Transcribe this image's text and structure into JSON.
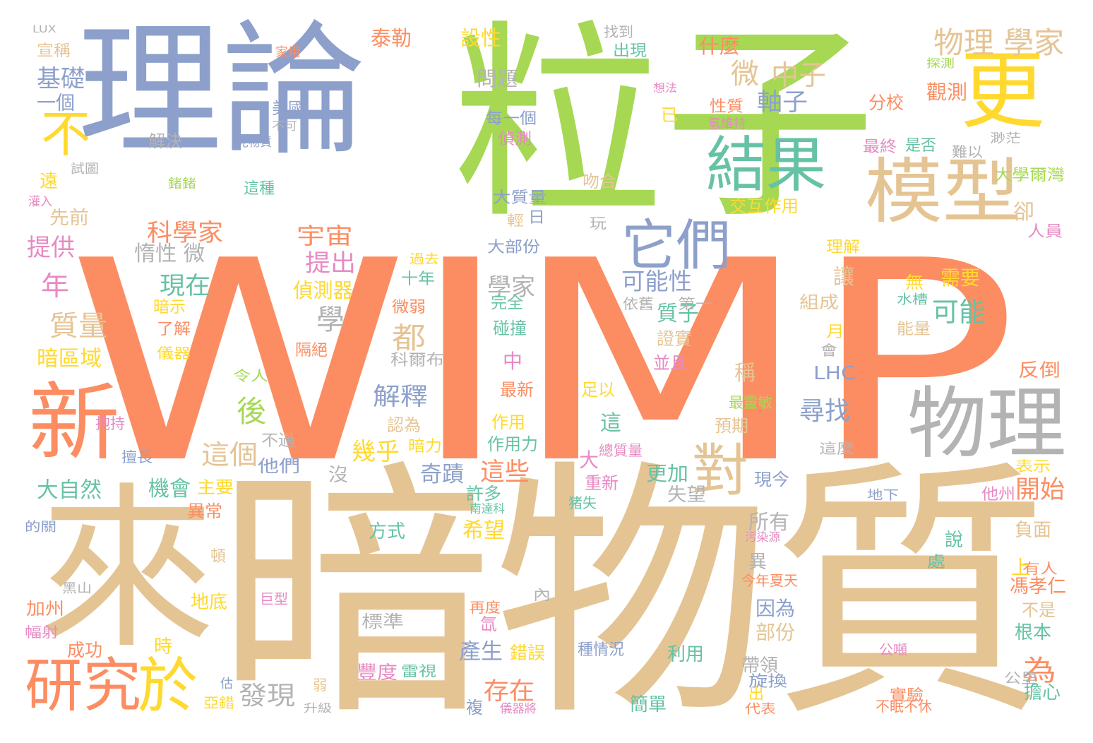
{
  "palette": {
    "orange": "#FC8D62",
    "blue": "#8DA0CB",
    "green": "#A6D854",
    "yellow": "#FFD92F",
    "tan": "#E5C494",
    "gray": "#B3B3B3",
    "teal": "#66C2A5",
    "pink": "#E78AC3"
  },
  "words": [
    {
      "text": "WIMP",
      "color": "orange"
    },
    {
      "text": "理論",
      "color": "blue"
    },
    {
      "text": "粒子",
      "color": "green"
    },
    {
      "text": "更",
      "color": "yellow"
    },
    {
      "text": "暗物質",
      "color": "tan"
    },
    {
      "text": "來",
      "color": "tan"
    },
    {
      "text": "新",
      "color": "orange"
    },
    {
      "text": "物理",
      "color": "gray"
    },
    {
      "text": "模型",
      "color": "tan"
    },
    {
      "text": "結果",
      "color": "teal"
    },
    {
      "text": "它們",
      "color": "blue"
    },
    {
      "text": "研究",
      "color": "orange"
    },
    {
      "text": "於",
      "color": "yellow"
    },
    {
      "text": "不",
      "color": "yellow"
    },
    {
      "text": "對",
      "color": "tan"
    },
    {
      "text": "物理 學家",
      "color": "tan"
    },
    {
      "text": "微",
      "color": "tan"
    },
    {
      "text": "中子",
      "color": "tan"
    },
    {
      "text": "軸子",
      "color": "blue"
    },
    {
      "text": "設性",
      "color": "yellow"
    },
    {
      "text": "問題",
      "color": "gray"
    },
    {
      "text": "泰勒",
      "color": "orange"
    },
    {
      "text": "什麼",
      "color": "orange"
    },
    {
      "text": "出現",
      "color": "teal"
    },
    {
      "text": "找到",
      "color": "gray"
    },
    {
      "text": "基礎",
      "color": "blue"
    },
    {
      "text": "一個",
      "color": "blue"
    },
    {
      "text": "宣稱",
      "color": "tan"
    },
    {
      "text": "家用",
      "color": "orange"
    },
    {
      "text": "LUX",
      "color": "gray"
    },
    {
      "text": "美國",
      "color": "blue"
    },
    {
      "text": "不可",
      "color": "gray"
    },
    {
      "text": "見物質",
      "color": "blue"
    },
    {
      "text": "解決",
      "color": "gray"
    },
    {
      "text": "試圖",
      "color": "gray"
    },
    {
      "text": "遠",
      "color": "yellow"
    },
    {
      "text": "灌入",
      "color": "pink"
    },
    {
      "text": "先前",
      "color": "tan"
    },
    {
      "text": "這種",
      "color": "teal"
    },
    {
      "text": "鍺鍺",
      "color": "green"
    },
    {
      "text": "每一個",
      "color": "blue"
    },
    {
      "text": "偵測",
      "color": "pink"
    },
    {
      "text": "大質量",
      "color": "blue"
    },
    {
      "text": "輕",
      "color": "tan"
    },
    {
      "text": "日",
      "color": "blue"
    },
    {
      "text": "吻合",
      "color": "tan"
    },
    {
      "text": "玩",
      "color": "gray"
    },
    {
      "text": "交互作用",
      "color": "yellow"
    },
    {
      "text": "觀測",
      "color": "orange"
    },
    {
      "text": "分校",
      "color": "orange"
    },
    {
      "text": "最終",
      "color": "pink"
    },
    {
      "text": "是否",
      "color": "teal"
    },
    {
      "text": "難以",
      "color": "gray"
    },
    {
      "text": "渺茫",
      "color": "gray"
    },
    {
      "text": "大學爾灣",
      "color": "green"
    },
    {
      "text": "性質",
      "color": "orange"
    },
    {
      "text": "氫維持",
      "color": "pink"
    },
    {
      "text": "想法",
      "color": "pink"
    },
    {
      "text": "已",
      "color": "yellow"
    },
    {
      "text": "卻",
      "color": "tan"
    },
    {
      "text": "人員",
      "color": "pink"
    },
    {
      "text": "理解",
      "color": "yellow"
    },
    {
      "text": "提供",
      "color": "pink"
    },
    {
      "text": "科學家",
      "color": "orange"
    },
    {
      "text": "宇宙",
      "color": "orange"
    },
    {
      "text": "提出",
      "color": "pink"
    },
    {
      "text": "惰性 微",
      "color": "gray"
    },
    {
      "text": "現在",
      "color": "teal"
    },
    {
      "text": "可能性",
      "color": "blue"
    },
    {
      "text": "大部份",
      "color": "blue"
    },
    {
      "text": "年",
      "color": "pink"
    },
    {
      "text": "學家",
      "color": "gray"
    },
    {
      "text": "偵測器",
      "color": "yellow"
    },
    {
      "text": "學",
      "color": "gray"
    },
    {
      "text": "十年",
      "color": "teal"
    },
    {
      "text": "過去",
      "color": "yellow"
    },
    {
      "text": "讓",
      "color": "tan"
    },
    {
      "text": "需要",
      "color": "yellow"
    },
    {
      "text": "無",
      "color": "yellow"
    },
    {
      "text": "可能",
      "color": "teal"
    },
    {
      "text": "水槽",
      "color": "teal"
    },
    {
      "text": "組成",
      "color": "tan"
    },
    {
      "text": "質子",
      "color": "teal"
    },
    {
      "text": "第一",
      "color": "gray"
    },
    {
      "text": "依舊",
      "color": "gray"
    },
    {
      "text": "完全",
      "color": "teal"
    },
    {
      "text": "微弱",
      "color": "orange"
    },
    {
      "text": "質量",
      "color": "tan"
    },
    {
      "text": "都",
      "color": "tan"
    },
    {
      "text": "暗示",
      "color": "yellow"
    },
    {
      "text": "了解",
      "color": "orange"
    },
    {
      "text": "碰撞",
      "color": "teal"
    },
    {
      "text": "證實",
      "color": "tan"
    },
    {
      "text": "月",
      "color": "yellow"
    },
    {
      "text": "能量",
      "color": "tan"
    },
    {
      "text": "會",
      "color": "gray"
    },
    {
      "text": "暗區域",
      "color": "yellow"
    },
    {
      "text": "儀器",
      "color": "yellow"
    },
    {
      "text": "隔絕",
      "color": "orange"
    },
    {
      "text": "科爾布",
      "color": "gray"
    },
    {
      "text": "中",
      "color": "pink"
    },
    {
      "text": "並且",
      "color": "pink"
    },
    {
      "text": "LHC",
      "color": "blue"
    },
    {
      "text": "反倒",
      "color": "orange"
    },
    {
      "text": "令人",
      "color": "green"
    },
    {
      "text": "最新",
      "color": "orange"
    },
    {
      "text": "稱",
      "color": "tan"
    },
    {
      "text": "解釋",
      "color": "blue"
    },
    {
      "text": "後",
      "color": "green"
    },
    {
      "text": "足以",
      "color": "yellow"
    },
    {
      "text": "尋找",
      "color": "blue"
    },
    {
      "text": "最靈敏",
      "color": "green"
    },
    {
      "text": "認為",
      "color": "tan"
    },
    {
      "text": "作用",
      "color": "yellow"
    },
    {
      "text": "這",
      "color": "teal"
    },
    {
      "text": "預期",
      "color": "tan"
    },
    {
      "text": "抱持",
      "color": "pink"
    },
    {
      "text": "不過",
      "color": "gray"
    },
    {
      "text": "這個",
      "color": "tan"
    },
    {
      "text": "幾乎",
      "color": "yellow"
    },
    {
      "text": "暗力",
      "color": "yellow"
    },
    {
      "text": "作用力",
      "color": "teal"
    },
    {
      "text": "總質量",
      "color": "pink"
    },
    {
      "text": "這麼",
      "color": "gray"
    },
    {
      "text": "表示",
      "color": "yellow"
    },
    {
      "text": "擅長",
      "color": "blue"
    },
    {
      "text": "他們",
      "color": "blue"
    },
    {
      "text": "主要",
      "color": "yellow"
    },
    {
      "text": "大自然",
      "color": "teal"
    },
    {
      "text": "機會",
      "color": "teal"
    },
    {
      "text": "沒",
      "color": "gray"
    },
    {
      "text": "奇蹟",
      "color": "blue"
    },
    {
      "text": "這些",
      "color": "orange"
    },
    {
      "text": "大",
      "color": "pink"
    },
    {
      "text": "更加",
      "color": "teal"
    },
    {
      "text": "現今",
      "color": "blue"
    },
    {
      "text": "開始",
      "color": "orange"
    },
    {
      "text": "許多",
      "color": "teal"
    },
    {
      "text": "南達科",
      "color": "teal"
    },
    {
      "text": "重新",
      "color": "pink"
    },
    {
      "text": "猪失",
      "color": "teal"
    },
    {
      "text": "失望",
      "color": "gray"
    },
    {
      "text": "地下",
      "color": "blue"
    },
    {
      "text": "他州",
      "color": "pink"
    },
    {
      "text": "的關",
      "color": "blue"
    },
    {
      "text": "異常",
      "color": "orange"
    },
    {
      "text": "頓",
      "color": "tan"
    },
    {
      "text": "方式",
      "color": "teal"
    },
    {
      "text": "希望",
      "color": "yellow"
    },
    {
      "text": "所有",
      "color": "gray"
    },
    {
      "text": "負面",
      "color": "tan"
    },
    {
      "text": "異",
      "color": "gray"
    },
    {
      "text": "污染源",
      "color": "pink"
    },
    {
      "text": "說",
      "color": "teal"
    },
    {
      "text": "處",
      "color": "teal"
    },
    {
      "text": "有人",
      "color": "orange"
    },
    {
      "text": "上",
      "color": "yellow"
    },
    {
      "text": "馮孝仁",
      "color": "orange"
    },
    {
      "text": "今年夏天",
      "color": "orange"
    },
    {
      "text": "黑山",
      "color": "gray"
    },
    {
      "text": "加州",
      "color": "orange"
    },
    {
      "text": "地底",
      "color": "yellow"
    },
    {
      "text": "巨型",
      "color": "pink"
    },
    {
      "text": "內",
      "color": "gray"
    },
    {
      "text": "再度",
      "color": "orange"
    },
    {
      "text": "因為",
      "color": "blue"
    },
    {
      "text": "不是",
      "color": "tan"
    },
    {
      "text": "氙",
      "color": "pink"
    },
    {
      "text": "標準",
      "color": "gray"
    },
    {
      "text": "部份",
      "color": "tan"
    },
    {
      "text": "根本",
      "color": "teal"
    },
    {
      "text": "幅射",
      "color": "pink"
    },
    {
      "text": "成功",
      "color": "orange"
    },
    {
      "text": "時",
      "color": "yellow"
    },
    {
      "text": "產生",
      "color": "blue"
    },
    {
      "text": "錯誤",
      "color": "yellow"
    },
    {
      "text": "種情況",
      "color": "blue"
    },
    {
      "text": "利用",
      "color": "teal"
    },
    {
      "text": "公噸",
      "color": "pink"
    },
    {
      "text": "為",
      "color": "orange"
    },
    {
      "text": "帶領",
      "color": "gray"
    },
    {
      "text": "公里",
      "color": "gray"
    },
    {
      "text": "豐度",
      "color": "pink"
    },
    {
      "text": "雷視",
      "color": "teal"
    },
    {
      "text": "存在",
      "color": "orange"
    },
    {
      "text": "發現",
      "color": "gray"
    },
    {
      "text": "估",
      "color": "blue"
    },
    {
      "text": "弱",
      "color": "tan"
    },
    {
      "text": "旋換",
      "color": "blue"
    },
    {
      "text": "實驗",
      "color": "orange"
    },
    {
      "text": "擔心",
      "color": "teal"
    },
    {
      "text": "出",
      "color": "yellow"
    },
    {
      "text": "亞錯",
      "color": "yellow"
    },
    {
      "text": "升級",
      "color": "gray"
    },
    {
      "text": "複",
      "color": "blue"
    },
    {
      "text": "儀器將",
      "color": "pink"
    },
    {
      "text": "簡單",
      "color": "teal"
    },
    {
      "text": "代表",
      "color": "orange"
    },
    {
      "text": "不眠不休",
      "color": "orange"
    },
    {
      "text": "探測",
      "color": "green"
    }
  ]
}
